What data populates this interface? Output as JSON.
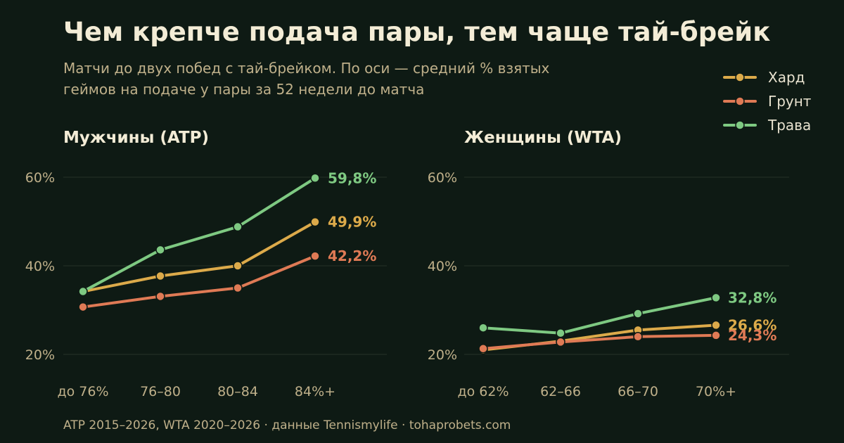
{
  "title": "Чем крепче подача пары, тем чаще тай-брейк",
  "subtitle_lines": [
    "Матчи до двух побед с тай-брейком. По оси — средний % взятых",
    "геймов на подаче у пары за 52 недели до матча"
  ],
  "footer": "ATP 2015–2026, WTA 2020–2026 · данные Tennismylife · tohaprobets.com",
  "colors": {
    "hard": "#dcaa4a",
    "clay": "#df7a55",
    "grass": "#7ec982",
    "background": "#0e1a14"
  },
  "chart_data": [
    {
      "type": "line",
      "title": "Мужчины (ATP)",
      "categories": [
        "до 76%",
        "76–80",
        "80–84",
        "84%+"
      ],
      "y_ticks": [
        "20%",
        "40%",
        "60%"
      ],
      "ylim": [
        20,
        60
      ],
      "grid": true,
      "legend": "top-right",
      "series": [
        {
          "name": "Хард",
          "color_key": "hard",
          "values": [
            34.2,
            37.7,
            40.0,
            49.9
          ],
          "end_label": "49,9%"
        },
        {
          "name": "Грунт",
          "color_key": "clay",
          "values": [
            30.7,
            33.1,
            35.0,
            42.2
          ],
          "end_label": "42,2%"
        },
        {
          "name": "Трава",
          "color_key": "grass",
          "values": [
            34.2,
            43.6,
            48.8,
            59.8
          ],
          "end_label": "59,8%"
        }
      ]
    },
    {
      "type": "line",
      "title": "Женщины (WTA)",
      "categories": [
        "до 62%",
        "62–66",
        "66–70",
        "70%+"
      ],
      "y_ticks": [
        "20%",
        "40%",
        "60%"
      ],
      "ylim": [
        20,
        60
      ],
      "grid": true,
      "series": [
        {
          "name": "Хард",
          "color_key": "hard",
          "values": [
            21.0,
            23.0,
            25.5,
            26.6
          ],
          "end_label": "26,6%"
        },
        {
          "name": "Грунт",
          "color_key": "clay",
          "values": [
            21.3,
            22.8,
            24.0,
            24.3
          ],
          "end_label": "24,3%"
        },
        {
          "name": "Трава",
          "color_key": "grass",
          "values": [
            26.0,
            24.8,
            29.2,
            32.8
          ],
          "end_label": "32,8%"
        }
      ]
    }
  ]
}
